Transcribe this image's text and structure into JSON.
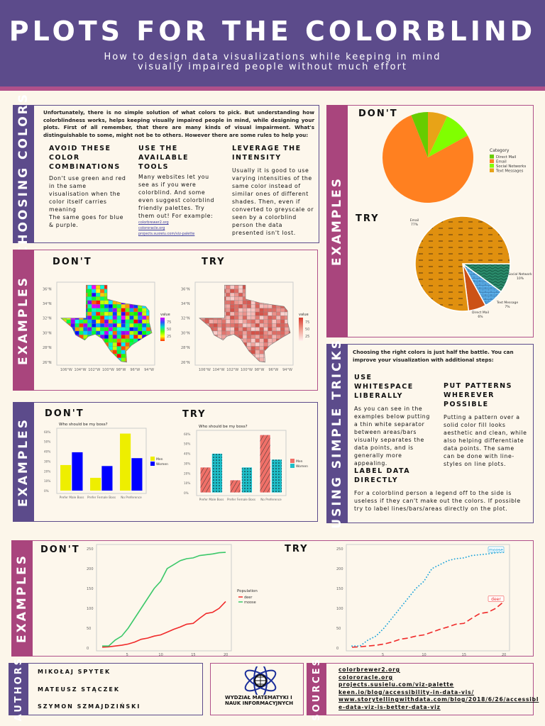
{
  "header": {
    "title": "PLOTS FOR THE COLORBLIND",
    "subtitle_line1": "How to design data visualizations while keeping in mind",
    "subtitle_line2": "visually impaired people without much effort"
  },
  "colors": {
    "header": "#5c4b8b",
    "accent_pink": "#a9457d",
    "background": "#fcf6ea"
  },
  "choosing_colors": {
    "side_label": "CHOOSING COLORS",
    "intro": "Unfortunately, there is no simple solution of what colors to pick. But understanding how colorblindness works, helps keeping visually impaired people in mind, while designing your plots. First of all remember, that there are many kinds of visual impairment. What's distinguishable to some, might not be to others. However there are some rules to help you:",
    "columns": [
      {
        "heading": "AVOID THESE COLOR COMBINATIONS",
        "text": "Don't use green and red in the same visualisation when the color itself carries meaning",
        "text2": "The same goes for blue & purple."
      },
      {
        "heading": "USE THE AVAILABLE TOOLS",
        "text": "Many websites let you see as if you were colorblind. And some even suggest colorblind friendly palettes. Try them out! For example:",
        "links": [
          "colorbrewer2.org",
          "colororacle.org",
          "projects.susielu.com/viz-palette"
        ]
      },
      {
        "heading": "LEVERAGE THE INTENSITY",
        "text": "Usually it is good to use varying intensities of the same color instead of similar ones of different shades. Then, even if converted to greyscale or seen by a colorblind person the data presented isn't lost."
      }
    ]
  },
  "examples_label": "EXAMPLES",
  "dont_label": "DON'T",
  "try_label": "TRY",
  "tricks": {
    "side_label": "USING SIMPLE TRICKS",
    "intro": "Choosing the right colors is just half the battle. You can improve your visualization with additional steps:",
    "whitespace": {
      "heading": "USE WHITESPACE LIBERALLY",
      "text": "As you can see in the examples below putting a thin white separator between areas/bars visually separates the data points, and is generally more appealing."
    },
    "patterns": {
      "heading": "PUT PATTERNS WHEREVER POSSIBLE",
      "text": "Putting a pattern over a solid color fill looks aesthetic and clean, while also helping differentiate data points. The same can be done with line-styles on line plots."
    },
    "label": {
      "heading": "LABEL DATA DIRECTLY",
      "text": "For a colorblind person a legend off to the side is useless if they can't make out the colors. If possible try to label lines/bars/areas directly on the plot."
    }
  },
  "authors": {
    "side_label": "AUTHORS",
    "names": [
      "MIKOŁAJ SPYTEK",
      "MATEUSZ STĄCZEK",
      "SZYMON SZMAJDZIŃSKI"
    ]
  },
  "logo": {
    "text": "WYDZIAŁ MATEMATYKI I NAUK INFORMACYJNYCH"
  },
  "sources": {
    "side_label": "SOURCES",
    "links": [
      "colorbrewer2.org",
      "colororacle.org",
      "projects.susielu.com/viz-palette",
      "keen.io/blog/accessibility-in-data-vis/",
      "www.storytellingwithdata.com/blog/2018/6/26/accessibl",
      "e-data-viz-is-better-data-viz"
    ]
  },
  "chart_data": [
    {
      "type": "heatmap",
      "variant": "dont",
      "palette": "rainbow",
      "x_ticks": [
        "106°W",
        "104°W",
        "102°W",
        "100°W",
        "98°W",
        "96°W",
        "94°W"
      ],
      "y_ticks": [
        "26°N",
        "28°N",
        "30°N",
        "32°N",
        "34°N",
        "36°N"
      ],
      "legend_title": "value",
      "legend_ticks": [
        "75",
        "50",
        "25"
      ]
    },
    {
      "type": "heatmap",
      "variant": "try",
      "palette": "reds",
      "x_ticks": [
        "106°W",
        "104°W",
        "102°W",
        "100°W",
        "98°W",
        "96°W",
        "94°W"
      ],
      "y_ticks": [
        "26°N",
        "28°N",
        "30°N",
        "32°N",
        "34°N",
        "36°N"
      ],
      "legend_title": "value",
      "legend_ticks": [
        "75",
        "50",
        "25"
      ]
    },
    {
      "type": "bar",
      "variant": "dont",
      "title": "Who should be my boss?",
      "categories": [
        "Prefer Male Boss",
        "Prefer Female Boss",
        "No Preference"
      ],
      "y_ticks": [
        "0%",
        "10%",
        "20%",
        "30%",
        "40%",
        "50%",
        "60%"
      ],
      "ylim": [
        0,
        62
      ],
      "series": [
        {
          "name": "Men",
          "values": [
            26,
            13,
            58
          ],
          "color": "#eeee00"
        },
        {
          "name": "Women",
          "values": [
            39,
            25,
            33
          ],
          "color": "#0000ff"
        }
      ]
    },
    {
      "type": "bar",
      "variant": "try",
      "title": "Who should be my boss?",
      "categories": [
        "Prefer Male Boss",
        "Prefer Female Boss",
        "No Preference"
      ],
      "y_ticks": [
        "0%",
        "10%",
        "20%",
        "30%",
        "40%",
        "50%",
        "60%"
      ],
      "ylim": [
        0,
        62
      ],
      "series": [
        {
          "name": "Men",
          "values": [
            26,
            13,
            59
          ],
          "color": "#f07068"
        },
        {
          "name": "Women",
          "values": [
            40,
            26,
            34
          ],
          "color": "#1fbfc9"
        }
      ]
    },
    {
      "type": "pie",
      "variant": "dont",
      "legend_title": "Category",
      "slices": [
        {
          "label": "Direct Mail",
          "value": 6,
          "color": "#66cc00"
        },
        {
          "label": "Email",
          "value": 77,
          "color": "#ff8020"
        },
        {
          "label": "Social Networks",
          "value": 10,
          "color": "#80ff00"
        },
        {
          "label": "Text Messages",
          "value": 7,
          "color": "#e8a317"
        }
      ]
    },
    {
      "type": "pie",
      "variant": "try",
      "slices": [
        {
          "label": "Email",
          "pct": "77%",
          "value": 77,
          "color": "#e0900f"
        },
        {
          "label": "Social Network",
          "pct": "10%",
          "value": 10,
          "color": "#2a8a6a"
        },
        {
          "label": "Text Message",
          "pct": "7%",
          "value": 7,
          "color": "#5aaee8"
        },
        {
          "label": "Direct Mail",
          "pct": "6%",
          "value": 6,
          "color": "#cc5216"
        }
      ]
    },
    {
      "type": "line",
      "variant": "dont",
      "legend_title": "Population",
      "x": [
        1,
        2,
        3,
        4,
        5,
        6,
        7,
        8,
        9,
        10,
        11,
        12,
        13,
        14,
        15,
        16,
        17,
        18,
        19,
        20
      ],
      "x_ticks": [
        5,
        10,
        15,
        20
      ],
      "y_ticks": [
        0,
        50,
        100,
        150,
        200,
        250
      ],
      "ylim": [
        0,
        250
      ],
      "series": [
        {
          "name": "deer",
          "color": "#f02a2a",
          "values": [
            2,
            3,
            5,
            7,
            10,
            15,
            22,
            25,
            30,
            33,
            40,
            47,
            53,
            60,
            62,
            75,
            87,
            90,
            100,
            117
          ]
        },
        {
          "name": "moose",
          "color": "#3cc86a",
          "values": [
            5,
            5,
            20,
            30,
            50,
            75,
            100,
            125,
            150,
            168,
            200,
            210,
            220,
            225,
            227,
            233,
            235,
            237,
            240,
            241
          ]
        }
      ]
    },
    {
      "type": "line",
      "variant": "try",
      "x": [
        1,
        2,
        3,
        4,
        5,
        6,
        7,
        8,
        9,
        10,
        11,
        12,
        13,
        14,
        15,
        16,
        17,
        18,
        19,
        20
      ],
      "x_ticks": [
        5,
        10,
        15,
        20
      ],
      "y_ticks": [
        0,
        50,
        100,
        150,
        200,
        250
      ],
      "ylim": [
        0,
        250
      ],
      "series": [
        {
          "name": "deer",
          "color": "#f02a2a",
          "values": [
            2,
            3,
            5,
            7,
            10,
            15,
            22,
            25,
            30,
            33,
            40,
            47,
            53,
            60,
            62,
            75,
            87,
            90,
            100,
            117
          ]
        },
        {
          "name": "moose",
          "color": "#1ba3d9",
          "values": [
            5,
            5,
            20,
            30,
            50,
            75,
            100,
            125,
            150,
            168,
            200,
            210,
            220,
            225,
            227,
            233,
            235,
            237,
            240,
            241
          ]
        }
      ]
    }
  ]
}
